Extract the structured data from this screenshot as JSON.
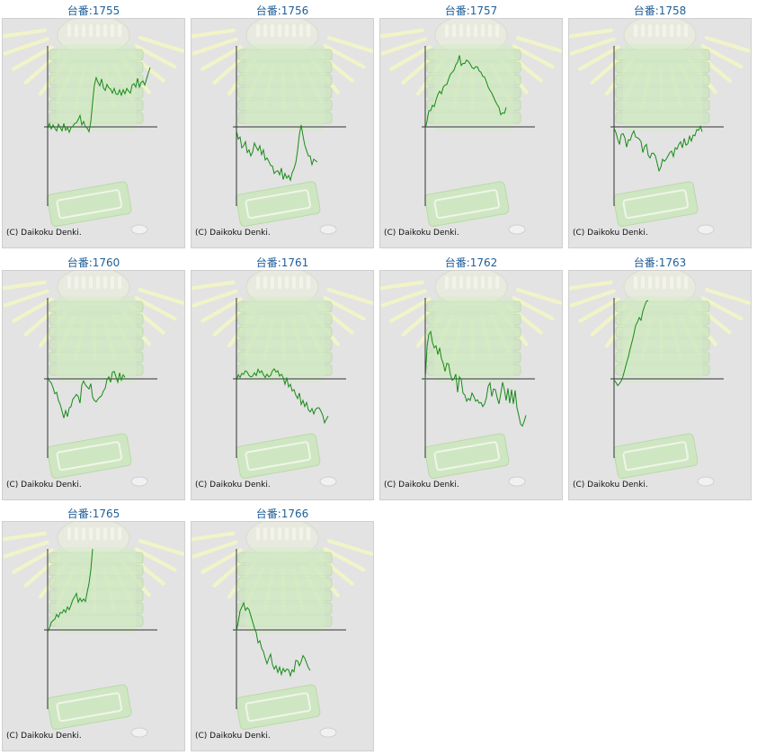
{
  "copyright": "(C) Daikoku Denki.",
  "colors": {
    "line": "#178a17",
    "axis": "#333333",
    "title": "#1f5f99",
    "panel": "#e3e3e3"
  },
  "machines": [
    {
      "label": "台番:1755",
      "values": [
        -3,
        5,
        -3,
        3,
        -2,
        -6,
        4,
        -1,
        -6,
        5,
        -5,
        -1,
        -8,
        -1,
        1,
        5,
        6,
        11,
        17,
        3,
        8,
        0,
        -2,
        -7,
        8,
        36,
        62,
        73,
        66,
        61,
        71,
        58,
        54,
        63,
        58,
        56,
        50,
        57,
        49,
        48,
        55,
        47,
        55,
        49,
        57,
        53,
        50,
        62,
        64,
        59,
        72,
        59,
        66,
        68,
        62,
        71,
        80,
        88
      ]
    },
    {
      "label": "台番:1756",
      "values": [
        -5,
        -18,
        -15,
        -31,
        -28,
        -22,
        -38,
        -34,
        -43,
        -37,
        -24,
        -30,
        -35,
        -28,
        -41,
        -34,
        -49,
        -46,
        -51,
        -57,
        -58,
        -69,
        -66,
        -65,
        -71,
        -61,
        -78,
        -69,
        -76,
        -72,
        -79,
        -68,
        -62,
        -53,
        -35,
        -11,
        3,
        -13,
        -27,
        -35,
        -43,
        -43,
        -56,
        -48,
        -50,
        -52
      ]
    },
    {
      "label": "台番:1757",
      "values": [
        -3,
        9,
        24,
        24,
        32,
        30,
        40,
        48,
        53,
        49,
        59,
        62,
        63,
        71,
        78,
        81,
        84,
        92,
        96,
        106,
        91,
        94,
        94,
        99,
        97,
        93,
        88,
        86,
        89,
        89,
        83,
        81,
        75,
        74,
        67,
        59,
        54,
        50,
        44,
        38,
        33,
        29,
        18,
        21,
        20,
        29
      ]
    },
    {
      "label": "台番:1758",
      "values": [
        -2,
        -8,
        -18,
        -26,
        -11,
        -10,
        -16,
        -30,
        -19,
        -20,
        -11,
        -6,
        -15,
        -16,
        -18,
        -22,
        -38,
        -29,
        -26,
        -42,
        -46,
        -39,
        -39,
        -43,
        -54,
        -65,
        -60,
        -48,
        -51,
        -48,
        -43,
        -38,
        -36,
        -44,
        -31,
        -33,
        -26,
        -22,
        -31,
        -17,
        -27,
        -25,
        -14,
        -21,
        -12,
        -13,
        -4,
        -5,
        1,
        -7
      ]
    },
    {
      "label": "台番:1760",
      "values": [
        3,
        -3,
        -6,
        -13,
        -22,
        -20,
        -32,
        -38,
        -48,
        -58,
        -47,
        -56,
        -43,
        -41,
        -30,
        -27,
        -23,
        -26,
        -36,
        -9,
        -3,
        -9,
        -12,
        -15,
        -7,
        -27,
        -32,
        -34,
        -30,
        -27,
        -25,
        -18,
        -14,
        -1,
        3,
        -5,
        10,
        11,
        3,
        -5,
        9,
        -2,
        6,
        2
      ]
    },
    {
      "label": "台番:1761",
      "values": [
        -3,
        6,
        2,
        8,
        7,
        12,
        10,
        5,
        3,
        4,
        9,
        5,
        14,
        9,
        12,
        6,
        2,
        7,
        3,
        5,
        12,
        15,
        10,
        12,
        4,
        7,
        2,
        -8,
        2,
        -12,
        -8,
        -18,
        -16,
        -24,
        -29,
        -21,
        -38,
        -32,
        -41,
        -35,
        -46,
        -49,
        -44,
        -52,
        -45,
        -43,
        -43,
        -48,
        -54,
        -65,
        -60,
        -55
      ]
    },
    {
      "label": "台番:1762",
      "values": [
        -2,
        48,
        66,
        70,
        54,
        46,
        49,
        36,
        46,
        30,
        23,
        11,
        23,
        22,
        6,
        -2,
        0,
        7,
        -20,
        3,
        -1,
        -21,
        -24,
        -33,
        -29,
        -32,
        -21,
        -26,
        -33,
        -31,
        -36,
        -35,
        -41,
        -37,
        -28,
        -11,
        -6,
        -26,
        -15,
        -16,
        -28,
        -37,
        -22,
        -5,
        -16,
        -32,
        -14,
        -36,
        -16,
        -37,
        -17,
        -43,
        -54,
        -67,
        -70,
        -63,
        -54
      ]
    },
    {
      "label": "台番:1763",
      "values": [
        -2,
        -5,
        -10,
        -7,
        -3,
        4,
        14,
        24,
        33,
        45,
        55,
        66,
        79,
        84,
        91,
        87,
        100,
        108,
        115,
        116
      ]
    },
    {
      "label": "台番:1765",
      "values": [
        -3,
        3,
        11,
        14,
        16,
        23,
        19,
        26,
        25,
        30,
        26,
        34,
        30,
        37,
        45,
        49,
        54,
        41,
        47,
        42,
        46,
        42,
        56,
        69,
        89,
        120
      ]
    },
    {
      "label": "台番:1766",
      "values": [
        -2,
        12,
        28,
        34,
        40,
        29,
        33,
        30,
        21,
        12,
        3,
        -4,
        -19,
        -16,
        -27,
        -32,
        -42,
        -50,
        -42,
        -36,
        -51,
        -58,
        -53,
        -63,
        -55,
        -66,
        -57,
        -62,
        -58,
        -59,
        -68,
        -59,
        -62,
        -45,
        -46,
        -53,
        -47,
        -38,
        -42,
        -49,
        -56,
        -60
      ]
    }
  ]
}
